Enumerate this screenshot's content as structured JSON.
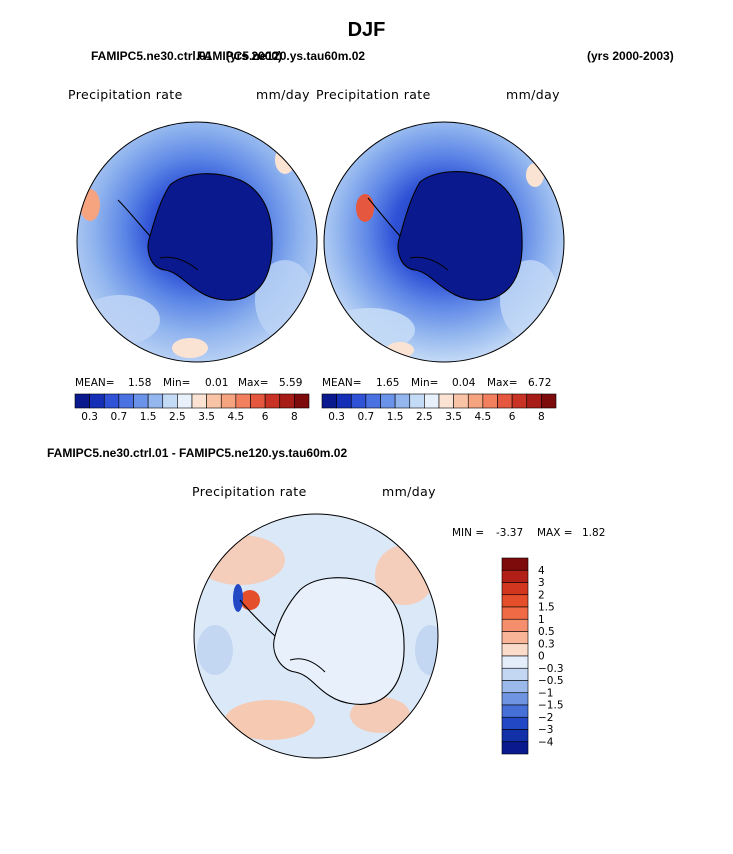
{
  "page_title": "DJF",
  "top_left_case_a": "FAMIPC5.ne30.ctrl.01",
  "top_left_case_a_years": "(yrs 2000)",
  "top_left_case_b": "FAMIPC5.ne120.ys.tau60m.02",
  "top_right_years": "(yrs 2000-2003)",
  "diff_title": "FAMIPC5.ne30.ctrl.01 - FAMIPC5.ne120.ys.tau60m.02",
  "panel_label": "Precipitation rate",
  "panel_unit": "mm/day",
  "stats_labels": {
    "mean": "MEAN=",
    "min": "Min=",
    "max": "Max="
  },
  "diff_stats_labels": {
    "min": "MIN =",
    "max": "MAX ="
  },
  "colors": {
    "ocean_wet": "#9cc1ee",
    "land_dry": "#0a1a8e",
    "coast": "#000000"
  },
  "chart_data": [
    {
      "type": "heatmap",
      "projection": "south-polar-stereographic",
      "title": "Precipitation rate",
      "units": "mm/day",
      "stats": {
        "mean": "1.58",
        "min": "0.01",
        "max": "5.59"
      },
      "colorbar_orientation": "horizontal",
      "colorbar_levels": [
        "0.3",
        "0.7",
        "1.5",
        "2.5",
        "3.5",
        "4.5",
        "6",
        "8"
      ],
      "colorbar_colors": [
        "#0a1a8e",
        "#1530b6",
        "#2f52d6",
        "#4a72e3",
        "#6c93ea",
        "#94b6ef",
        "#c4dbf6",
        "#e8f1fb",
        "#fbe3d3",
        "#f9c3a6",
        "#f6a37f",
        "#f27f5e",
        "#e5583f",
        "#c93326",
        "#a71c16",
        "#7d0b0b"
      ]
    },
    {
      "type": "heatmap",
      "projection": "south-polar-stereographic",
      "title": "Precipitation rate",
      "units": "mm/day",
      "stats": {
        "mean": "1.65",
        "min": "0.04",
        "max": "6.72"
      },
      "colorbar_orientation": "horizontal",
      "colorbar_levels": [
        "0.3",
        "0.7",
        "1.5",
        "2.5",
        "3.5",
        "4.5",
        "6",
        "8"
      ],
      "colorbar_colors": [
        "#0a1a8e",
        "#1530b6",
        "#2f52d6",
        "#4a72e3",
        "#6c93ea",
        "#94b6ef",
        "#c4dbf6",
        "#e8f1fb",
        "#fbe3d3",
        "#f9c3a6",
        "#f6a37f",
        "#f27f5e",
        "#e5583f",
        "#c93326",
        "#a71c16",
        "#7d0b0b"
      ]
    },
    {
      "type": "heatmap",
      "projection": "south-polar-stereographic",
      "title": "Precipitation rate",
      "units": "mm/day",
      "stats": {
        "min": "-3.37",
        "max": "1.82"
      },
      "colorbar_orientation": "vertical",
      "colorbar_levels": [
        "4",
        "3",
        "2",
        "1.5",
        "1",
        "0.5",
        "0.3",
        "0",
        "−0.3",
        "−0.5",
        "−1",
        "−1.5",
        "−2",
        "−3",
        "−4"
      ],
      "colorbar_colors": [
        "#7d0b0b",
        "#b11f16",
        "#d2361f",
        "#e54e2b",
        "#f06a45",
        "#f58e6c",
        "#f8b598",
        "#fbdcca",
        "#e4eefa",
        "#c3d7f3",
        "#9bbaeb",
        "#6f95e2",
        "#4670d8",
        "#2348c6",
        "#1230a8",
        "#0a1a8e"
      ]
    }
  ]
}
